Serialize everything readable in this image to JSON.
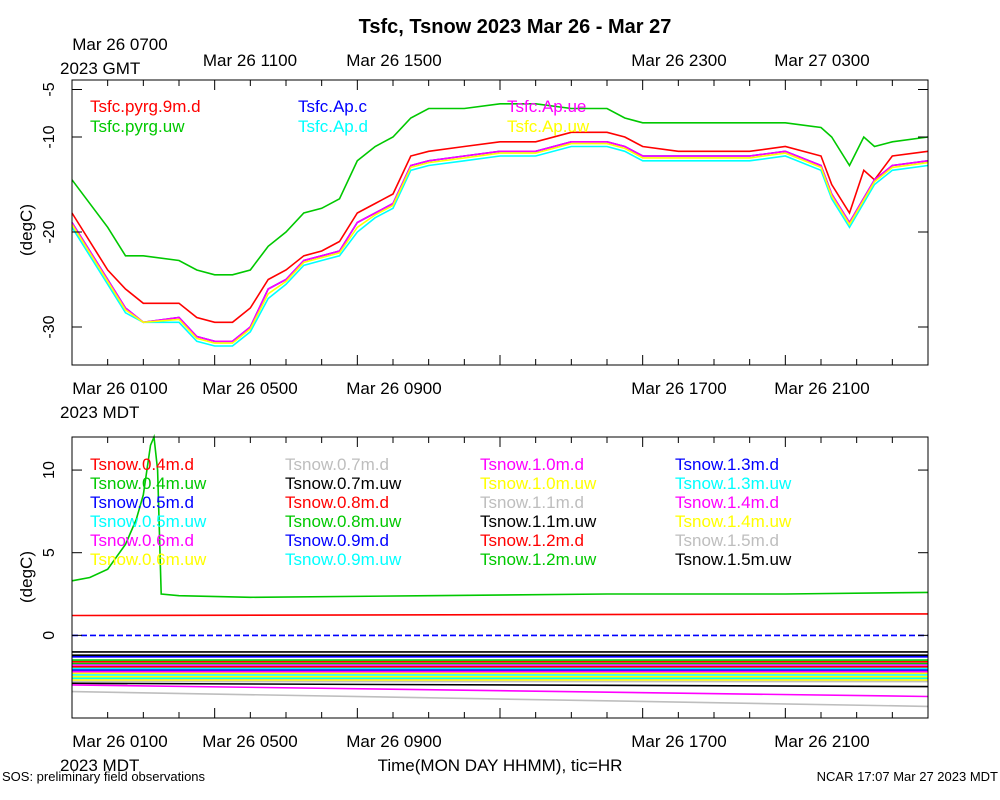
{
  "title": "Tsfc, Tsnow 2023 Mar 26 - Mar 27",
  "top_axis": {
    "labels": [
      "Mar 26 0700",
      "Mar 26 1100",
      "Mar 26 1500",
      "Mar 26 2300",
      "Mar 27 0300"
    ],
    "tz": "2023 GMT"
  },
  "bottom_axis": {
    "labels": [
      "Mar 26 0100",
      "Mar 26 0500",
      "Mar 26 0900",
      "Mar 26 1700",
      "Mar 26 2100"
    ],
    "tz": "2023 MDT"
  },
  "xlabel": "Time(MON DAY HHMM), tic=HR",
  "footer_left": "SOS: preliminary field observations",
  "footer_right": "NCAR 17:07 Mar 27 2023 MDT",
  "colors": {
    "red": "#ff0000",
    "green": "#00c800",
    "blue": "#0000ff",
    "cyan": "#00ffff",
    "magenta": "#ff00ff",
    "yellow": "#ffff00",
    "black": "#000000",
    "gray": "#bebebe"
  },
  "chart_data": [
    {
      "type": "line",
      "ylabel": "(degC)",
      "ylim": [
        -34,
        -4
      ],
      "yticks": [
        -5,
        -10,
        -20,
        -30
      ],
      "xlim_hours": [
        0,
        24
      ],
      "series": [
        {
          "name": "Tsfc.pyrg.9m.d",
          "color": "red",
          "x": [
            0,
            1,
            1.5,
            2,
            3,
            3.5,
            4,
            4.5,
            5,
            5.5,
            6,
            6.5,
            7,
            7.5,
            8,
            8.5,
            9,
            9.5,
            10,
            11,
            12,
            13,
            14,
            15,
            15.5,
            16,
            17,
            18,
            19,
            20,
            21,
            21.3,
            21.8,
            22.2,
            22.5,
            23,
            24
          ],
          "y": [
            -18,
            -24,
            -26,
            -27.5,
            -27.5,
            -29,
            -29.5,
            -29.5,
            -28,
            -25,
            -24,
            -22.5,
            -22,
            -21,
            -18,
            -17,
            -16,
            -12,
            -11.5,
            -11,
            -10.5,
            -10.5,
            -9.5,
            -9.5,
            -10,
            -11,
            -11.5,
            -11.5,
            -11.5,
            -11,
            -12,
            -15,
            -18,
            -13.5,
            -14.5,
            -12,
            -11.5
          ]
        },
        {
          "name": "Tsfc.pyrg.uw",
          "color": "green",
          "x": [
            0,
            1,
            1.5,
            2,
            3,
            3.5,
            4,
            4.5,
            5,
            5.5,
            6,
            6.5,
            7,
            7.5,
            8,
            8.5,
            9,
            9.5,
            10,
            11,
            12,
            13,
            14,
            15,
            15.5,
            16,
            17,
            18,
            19,
            20,
            21,
            21.3,
            21.8,
            22.2,
            22.5,
            23,
            24
          ],
          "y": [
            -14.5,
            -19.5,
            -22.5,
            -22.5,
            -23,
            -24,
            -24.5,
            -24.5,
            -24,
            -21.5,
            -20,
            -18,
            -17.5,
            -16.5,
            -12.5,
            -11,
            -10,
            -8,
            -7,
            -7,
            -6.5,
            -6.5,
            -7,
            -7,
            -8,
            -8.5,
            -8.5,
            -8.5,
            -8.5,
            -8.5,
            -9,
            -10,
            -13,
            -10,
            -11,
            -10.5,
            -10
          ]
        },
        {
          "name": "Tsfc.Ap.c",
          "color": "blue",
          "x": [
            0,
            1,
            1.5,
            2,
            3,
            3.5,
            4,
            4.5,
            5,
            5.5,
            6,
            6.5,
            7,
            7.5,
            8,
            8.5,
            9,
            9.5,
            10,
            11,
            12,
            13,
            14,
            15,
            15.5,
            16,
            17,
            18,
            19,
            20,
            21,
            21.3,
            21.8,
            22.5,
            23,
            24
          ],
          "y": [
            -19,
            -25,
            -28,
            -29.5,
            -29,
            -31,
            -31.5,
            -31.5,
            -30,
            -26,
            -25,
            -23,
            -22.5,
            -22,
            -19,
            -18,
            -17,
            -13,
            -12.5,
            -12,
            -11.5,
            -11.5,
            -10.5,
            -10.5,
            -11,
            -12,
            -12,
            -12,
            -12,
            -11.5,
            -13,
            -16,
            -19,
            -14.5,
            -13,
            -12.5
          ]
        },
        {
          "name": "Tsfc.Ap.d",
          "color": "cyan",
          "x": [
            0,
            1,
            1.5,
            2,
            3,
            3.5,
            4,
            4.5,
            5,
            5.5,
            6,
            6.5,
            7,
            7.5,
            8,
            8.5,
            9,
            9.5,
            10,
            11,
            12,
            13,
            14,
            15,
            15.5,
            16,
            17,
            18,
            19,
            20,
            21,
            21.3,
            21.8,
            22.5,
            23,
            24
          ],
          "y": [
            -19.5,
            -25.5,
            -28.5,
            -29.5,
            -29.5,
            -31.5,
            -32,
            -32,
            -30.5,
            -27,
            -25.5,
            -23.5,
            -23,
            -22.5,
            -20,
            -18.5,
            -17.5,
            -13.5,
            -13,
            -12.5,
            -12,
            -12,
            -11,
            -11,
            -11.5,
            -12.5,
            -12.5,
            -12.5,
            -12.5,
            -12,
            -13.5,
            -16.5,
            -19.5,
            -15,
            -13.5,
            -13
          ]
        },
        {
          "name": "Tsfc.Ap.ue",
          "color": "magenta",
          "x": [
            0,
            1,
            1.5,
            2,
            3,
            3.5,
            4,
            4.5,
            5,
            5.5,
            6,
            6.5,
            7,
            7.5,
            8,
            8.5,
            9,
            9.5,
            10,
            11,
            12,
            13,
            14,
            15,
            15.5,
            16,
            17,
            18,
            19,
            20,
            21,
            21.3,
            21.8,
            22.5,
            23,
            24
          ],
          "y": [
            -19,
            -25,
            -28,
            -29.5,
            -29,
            -31,
            -31.5,
            -31.5,
            -30,
            -26,
            -25,
            -23,
            -22.5,
            -22,
            -19,
            -18,
            -17,
            -13,
            -12.5,
            -12,
            -11.5,
            -11.5,
            -10.5,
            -10.5,
            -11,
            -12,
            -12,
            -12,
            -12,
            -11.5,
            -13,
            -16,
            -19,
            -14.5,
            -13,
            -12.5
          ]
        },
        {
          "name": "Tsfc.Ap.uw",
          "color": "yellow",
          "x": [
            0,
            1,
            1.5,
            2,
            3,
            3.5,
            4,
            4.5,
            5,
            5.5,
            6,
            6.5,
            7,
            7.5,
            8,
            8.5,
            9,
            9.5,
            10,
            11,
            12,
            13,
            14,
            15,
            15.5,
            16,
            17,
            18,
            19,
            20,
            21,
            21.3,
            21.8,
            22.5,
            23,
            24
          ],
          "y": [
            -19.2,
            -25.2,
            -28.2,
            -29.5,
            -29.2,
            -31.2,
            -31.7,
            -31.7,
            -30.2,
            -26.5,
            -25.2,
            -23.2,
            -22.7,
            -22.2,
            -19.5,
            -18.2,
            -17.2,
            -13.2,
            -12.7,
            -12.2,
            -11.7,
            -11.7,
            -10.7,
            -10.7,
            -11.2,
            -12.2,
            -12.2,
            -12.2,
            -12.2,
            -11.7,
            -13.2,
            -16.2,
            -19.2,
            -14.7,
            -13.2,
            -12.7
          ]
        }
      ]
    },
    {
      "type": "line",
      "ylabel": "(degC)",
      "ylim": [
        -5,
        12
      ],
      "yticks": [
        10,
        5,
        0
      ],
      "xlim_hours": [
        0,
        24
      ],
      "series": [
        {
          "name": "Tsnow.0.4m.d",
          "color": "red",
          "x": [
            0,
            24
          ],
          "y": [
            1.2,
            1.3
          ]
        },
        {
          "name": "Tsnow.0.4m.uw",
          "color": "green",
          "x": [
            0,
            0.5,
            1,
            1.5,
            1.8,
            2,
            2.1,
            2.2,
            2.3,
            2.4,
            2.5,
            3,
            5,
            10,
            15,
            20,
            24
          ],
          "y": [
            3.3,
            3.5,
            4,
            5.5,
            7,
            8.5,
            10,
            11.5,
            12,
            10,
            2.5,
            2.4,
            2.3,
            2.4,
            2.5,
            2.5,
            2.6
          ]
        },
        {
          "name": "Tsnow.0.5m.d",
          "color": "blue",
          "x": [
            0,
            24
          ],
          "y": [
            0,
            0
          ]
        },
        {
          "name": "Tsnow.0.5m.uw",
          "color": "cyan",
          "x": [
            0,
            24
          ],
          "y": [
            -2,
            -2
          ]
        },
        {
          "name": "Tsnow.0.6m.d",
          "color": "magenta",
          "x": [
            0,
            24
          ],
          "y": [
            -1.8,
            -1.8
          ]
        },
        {
          "name": "Tsnow.0.6m.uw",
          "color": "yellow",
          "x": [
            0,
            24
          ],
          "y": [
            -2.3,
            -2.3
          ]
        },
        {
          "name": "Tsnow.0.7m.d",
          "color": "gray",
          "x": [
            0,
            24
          ],
          "y": [
            -2.6,
            -2.7
          ]
        },
        {
          "name": "Tsnow.0.7m.uw",
          "color": "black",
          "x": [
            0,
            24
          ],
          "y": [
            -1,
            -1
          ]
        },
        {
          "name": "Tsnow.0.8m.d",
          "color": "red",
          "x": [
            0,
            24
          ],
          "y": [
            -1.6,
            -1.6
          ]
        },
        {
          "name": "Tsnow.0.8m.uw",
          "color": "green",
          "x": [
            0,
            24
          ],
          "y": [
            -1.5,
            -1.5
          ]
        },
        {
          "name": "Tsnow.0.9m.d",
          "color": "blue",
          "x": [
            0,
            24
          ],
          "y": [
            -2.1,
            -2.1
          ]
        },
        {
          "name": "Tsnow.0.9m.uw",
          "color": "cyan",
          "x": [
            0,
            24
          ],
          "y": [
            -2.4,
            -2.4
          ]
        },
        {
          "name": "Tsnow.1.0m.d",
          "color": "magenta",
          "x": [
            0,
            24
          ],
          "y": [
            -2.2,
            -2.2
          ]
        },
        {
          "name": "Tsnow.1.0m.uw",
          "color": "yellow",
          "x": [
            0,
            24
          ],
          "y": [
            -2.5,
            -2.5
          ]
        },
        {
          "name": "Tsnow.1.1m.d",
          "color": "gray",
          "x": [
            0,
            24
          ],
          "y": [
            -2.8,
            -2.8
          ]
        },
        {
          "name": "Tsnow.1.1m.uw",
          "color": "black",
          "x": [
            0,
            24
          ],
          "y": [
            -2.9,
            -3.1
          ]
        },
        {
          "name": "Tsnow.1.2m.d",
          "color": "red",
          "x": [
            0,
            24
          ],
          "y": [
            -1.9,
            -1.9
          ]
        },
        {
          "name": "Tsnow.1.2m.uw",
          "color": "green",
          "x": [
            0,
            24
          ],
          "y": [
            -1.7,
            -1.7
          ]
        },
        {
          "name": "Tsnow.1.3m.d",
          "color": "blue",
          "x": [
            0,
            24
          ],
          "y": [
            -1.3,
            -1.3
          ]
        },
        {
          "name": "Tsnow.1.3m.uw",
          "color": "cyan",
          "x": [
            0,
            24
          ],
          "y": [
            -2.6,
            -2.6
          ]
        },
        {
          "name": "Tsnow.1.4m.d",
          "color": "magenta",
          "x": [
            0,
            24
          ],
          "y": [
            -3,
            -3.7
          ]
        },
        {
          "name": "Tsnow.1.4m.uw",
          "color": "yellow",
          "x": [
            0,
            24
          ],
          "y": [
            -2.7,
            -2.7
          ]
        },
        {
          "name": "Tsnow.1.5m.d",
          "color": "gray",
          "x": [
            0,
            24
          ],
          "y": [
            -3.4,
            -4.3
          ]
        },
        {
          "name": "Tsnow.1.5m.uw",
          "color": "black",
          "x": [
            0,
            24
          ],
          "y": [
            -1.2,
            -1.2
          ]
        }
      ]
    }
  ]
}
